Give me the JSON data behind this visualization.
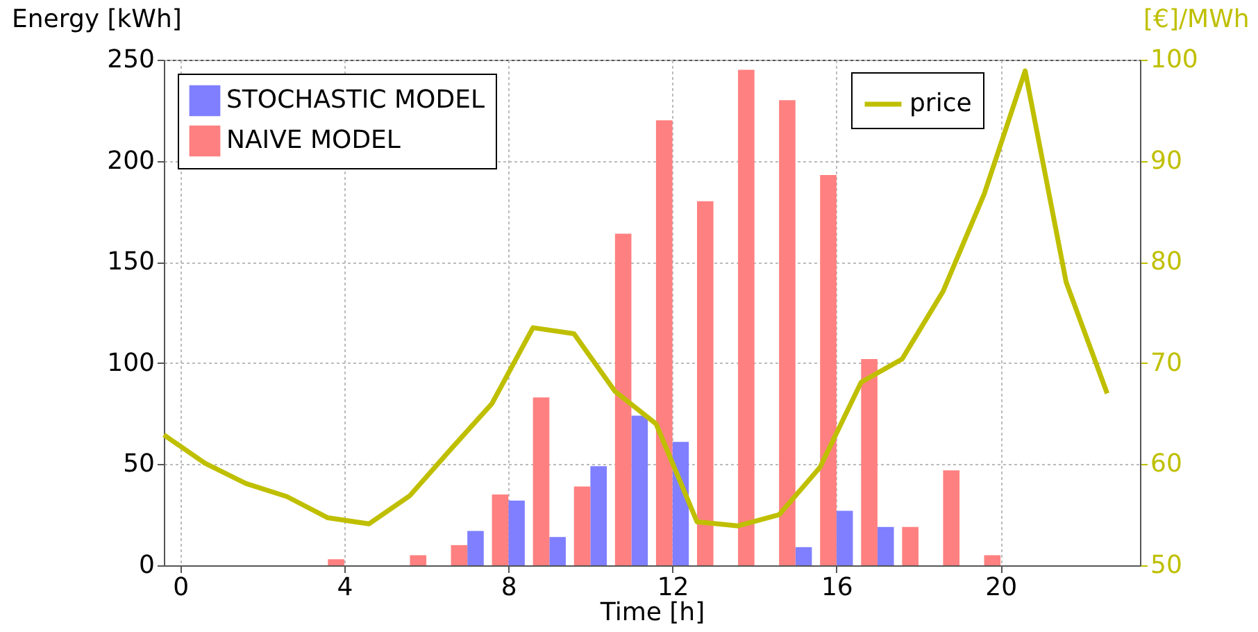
{
  "chart_data": {
    "type": "bar",
    "xlabel": "Time [h]",
    "ylabel": "Energy [kWh]",
    "y2label": "[€]/MWh",
    "x": [
      4,
      6,
      7,
      8,
      9,
      10,
      11,
      12,
      13,
      14,
      15,
      16,
      17,
      18,
      19,
      20
    ],
    "xlim": [
      -0.4,
      23.4
    ],
    "xticks": [
      0,
      4,
      8,
      12,
      16,
      20
    ],
    "ylim": [
      0,
      250
    ],
    "yticks": [
      0,
      50,
      100,
      150,
      200,
      250
    ],
    "y2lim": [
      50,
      100
    ],
    "y2ticks": [
      50,
      60,
      70,
      80,
      90,
      100
    ],
    "grid": true,
    "legend": "top left",
    "line_style": "solid",
    "series": [
      {
        "name": "STOCHASTIC MODEL",
        "color": "#7f7fff",
        "values": [
          null,
          null,
          17,
          32,
          14,
          49,
          74,
          61,
          null,
          null,
          9,
          27,
          19,
          null,
          null,
          null
        ]
      },
      {
        "name": "NAIVE MODEL",
        "color": "#ff8080",
        "values": [
          3,
          5,
          10,
          35,
          83,
          39,
          164,
          220,
          180,
          245,
          230,
          193,
          102,
          19,
          47,
          5
        ]
      },
      {
        "name": "price",
        "type": "line",
        "axis": "y2",
        "color": "#bfbf00",
        "x": [
          -0.4,
          0.6,
          1.6,
          2.6,
          3.6,
          4.6,
          5.6,
          6.6,
          7.6,
          8.6,
          9.6,
          10.6,
          11.6,
          12.6,
          13.6,
          14.6,
          15.6,
          16.6,
          17.6,
          18.6,
          19.6,
          20.6,
          21.6,
          22.6
        ],
        "values": [
          62.9,
          60.1,
          58.1,
          56.8,
          54.7,
          54.1,
          56.9,
          61.5,
          66.0,
          73.5,
          72.9,
          67.2,
          64.0,
          54.3,
          53.9,
          55.0,
          59.7,
          68.1,
          70.4,
          77.1,
          86.7,
          98.9,
          78.0,
          67.0
        ]
      }
    ]
  }
}
